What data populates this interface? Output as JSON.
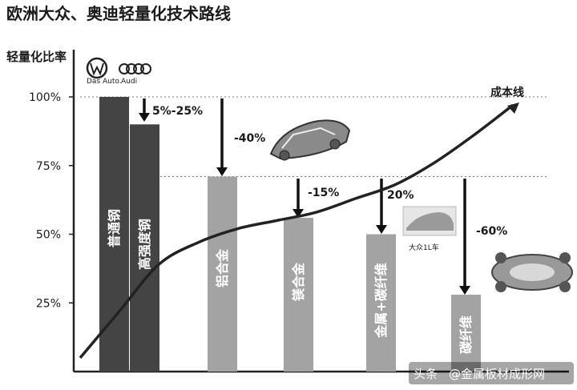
{
  "chart_data": {
    "type": "bar",
    "title": "欧洲大众、奥迪轻量化技术路线",
    "ylabel": "轻量化比率",
    "yticks": [
      "25%",
      "50%",
      "75%",
      "100%"
    ],
    "ylim": [
      0,
      100
    ],
    "categories": [
      "普通钢",
      "高强度钢",
      "铝合金",
      "镁合金",
      "金属+碳纤维",
      "碳纤维"
    ],
    "values": [
      100,
      90,
      71,
      56,
      50,
      28
    ],
    "annotations": [
      "5%-25%",
      "-40%",
      "-15%",
      "20%",
      "-60%"
    ],
    "curve": {
      "label": "成本线",
      "y": [
        5,
        22,
        39,
        47,
        52,
        55,
        58,
        63,
        68,
        76,
        86,
        97
      ]
    },
    "reference_lines": [
      100,
      71
    ],
    "brands": [
      "Das Auto.",
      "Audi"
    ],
    "car_caption": "大众1L车",
    "colors": {
      "dark_bar": "#444444",
      "light_bar": "#a3a3a3",
      "curve": "#222222"
    }
  },
  "watermark": {
    "prefix": "头条",
    "text": "@金属板材成形网"
  }
}
